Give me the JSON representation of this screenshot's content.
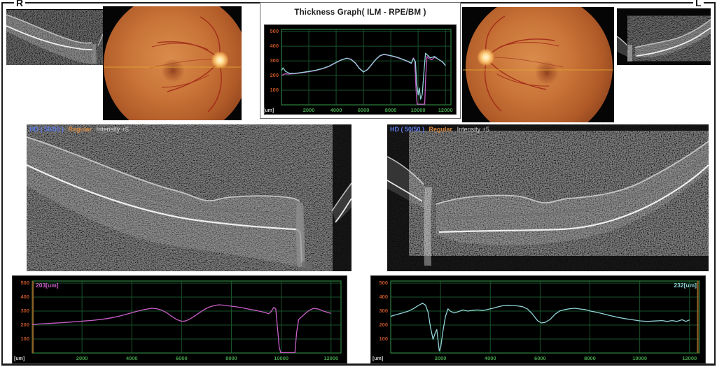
{
  "page": {
    "right_eye_label": "R",
    "left_eye_label": "L"
  },
  "colors": {
    "grid": "#17522b",
    "axis": "#2e7d3c",
    "y_tick": "#bf5327",
    "x_tick": "#45a04b",
    "unit": "#d0d0d0",
    "marker": "#8a5e22",
    "magenta": "#c95fc9",
    "cyan": "#8fd2d6",
    "hd_blue": "#5b79e8",
    "regular_orange": "#d98a3d",
    "intensity_white": "#d8d8d8"
  },
  "bscans": {
    "right_eye": {
      "hd": "HD ( 50/50 )",
      "mode": "Regular",
      "intensity": "Intensity +5"
    },
    "left_eye": {
      "hd": "HD ( 50/50 )",
      "mode": "Regular",
      "intensity": "Intensity +5"
    }
  },
  "chart_data": [
    {
      "id": "thickness-overlay",
      "type": "line",
      "title": "Thickness Graph( ILM - RPE/BM )",
      "x_unit": "[um]",
      "xlabel": "[um]",
      "ylabel": "",
      "x_ticks": [
        2000,
        4000,
        6000,
        8000,
        10000,
        12000
      ],
      "y_ticks": [
        100,
        200,
        300,
        400,
        500
      ],
      "xlim": [
        0,
        12400
      ],
      "ylim": [
        0,
        515
      ],
      "grid": true,
      "marker_x": null,
      "series": [
        {
          "name": "right-eye-thickness",
          "color": "#c95fc9",
          "points": [
            [
              0,
              200
            ],
            [
              250,
              212
            ],
            [
              500,
              210
            ],
            [
              1000,
              213
            ],
            [
              1500,
              219
            ],
            [
              2000,
              226
            ],
            [
              2500,
              234
            ],
            [
              3000,
              246
            ],
            [
              3500,
              263
            ],
            [
              4000,
              288
            ],
            [
              4400,
              306
            ],
            [
              4800,
              319
            ],
            [
              5100,
              311
            ],
            [
              5400,
              287
            ],
            [
              5700,
              250
            ],
            [
              6000,
              226
            ],
            [
              6300,
              240
            ],
            [
              6600,
              274
            ],
            [
              6900,
              308
            ],
            [
              7200,
              333
            ],
            [
              7500,
              344
            ],
            [
              7800,
              338
            ],
            [
              8100,
              332
            ],
            [
              8500,
              322
            ],
            [
              8900,
              308
            ],
            [
              9200,
              297
            ],
            [
              9500,
              283
            ],
            [
              9650,
              320
            ],
            [
              9750,
              305
            ],
            [
              9850,
              100
            ],
            [
              9930,
              4
            ],
            [
              10480,
              4
            ],
            [
              10560,
              200
            ],
            [
              10650,
              330
            ],
            [
              10800,
              315
            ],
            [
              11000,
              308
            ],
            [
              11200,
              325
            ],
            [
              11450,
              312
            ],
            [
              11700,
              298
            ],
            [
              12000,
              272
            ]
          ]
        },
        {
          "name": "left-eye-thickness",
          "color": "#8fd2d6",
          "points": [
            [
              0,
              235
            ],
            [
              120,
              252
            ],
            [
              300,
              228
            ],
            [
              600,
              215
            ],
            [
              1000,
              215
            ],
            [
              1500,
              221
            ],
            [
              2000,
              228
            ],
            [
              2500,
              236
            ],
            [
              3000,
              248
            ],
            [
              3500,
              265
            ],
            [
              4000,
              290
            ],
            [
              4400,
              308
            ],
            [
              4800,
              318
            ],
            [
              5100,
              309
            ],
            [
              5400,
              285
            ],
            [
              5700,
              248
            ],
            [
              6000,
              224
            ],
            [
              6300,
              242
            ],
            [
              6600,
              276
            ],
            [
              6900,
              310
            ],
            [
              7200,
              335
            ],
            [
              7500,
              346
            ],
            [
              7800,
              340
            ],
            [
              8100,
              334
            ],
            [
              8500,
              324
            ],
            [
              8900,
              310
            ],
            [
              9200,
              299
            ],
            [
              9500,
              285
            ],
            [
              9650,
              315
            ],
            [
              9800,
              295
            ],
            [
              9900,
              140
            ],
            [
              10000,
              68
            ],
            [
              10090,
              115
            ],
            [
              10180,
              38
            ],
            [
              10300,
              70
            ],
            [
              10430,
              230
            ],
            [
              10540,
              352
            ],
            [
              10700,
              338
            ],
            [
              10900,
              320
            ],
            [
              11200,
              330
            ],
            [
              11500,
              310
            ],
            [
              11800,
              292
            ],
            [
              12000,
              268
            ]
          ]
        }
      ]
    },
    {
      "id": "right-eye-thickness-graph",
      "type": "line",
      "title": "",
      "value_label": "203[um]",
      "value_label_color": "#c95fc9",
      "value_label_side": "left",
      "x_unit": "[um]",
      "xlabel": "[um]",
      "ylabel": "",
      "x_ticks": [
        2000,
        4000,
        6000,
        8000,
        10000,
        12000
      ],
      "y_ticks": [
        100,
        200,
        300,
        400,
        500
      ],
      "xlim": [
        0,
        12400
      ],
      "ylim": [
        0,
        515
      ],
      "grid": true,
      "marker_x": 25,
      "series": [
        {
          "name": "right-eye-thickness",
          "color": "#c95fc9",
          "points": [
            [
              0,
              203
            ],
            [
              300,
              208
            ],
            [
              600,
              211
            ],
            [
              900,
              214
            ],
            [
              1200,
              217
            ],
            [
              1500,
              221
            ],
            [
              1800,
              225
            ],
            [
              2100,
              229
            ],
            [
              2400,
              233
            ],
            [
              2700,
              239
            ],
            [
              3000,
              246
            ],
            [
              3300,
              256
            ],
            [
              3600,
              268
            ],
            [
              3900,
              283
            ],
            [
              4200,
              298
            ],
            [
              4500,
              311
            ],
            [
              4800,
              320
            ],
            [
              5000,
              317
            ],
            [
              5200,
              307
            ],
            [
              5400,
              288
            ],
            [
              5600,
              262
            ],
            [
              5800,
              240
            ],
            [
              6000,
              227
            ],
            [
              6150,
              229
            ],
            [
              6300,
              240
            ],
            [
              6500,
              262
            ],
            [
              6700,
              286
            ],
            [
              6900,
              310
            ],
            [
              7100,
              328
            ],
            [
              7300,
              339
            ],
            [
              7500,
              345
            ],
            [
              7700,
              342
            ],
            [
              7900,
              337
            ],
            [
              8100,
              333
            ],
            [
              8400,
              325
            ],
            [
              8700,
              314
            ],
            [
              9000,
              304
            ],
            [
              9200,
              296
            ],
            [
              9400,
              287
            ],
            [
              9500,
              281
            ],
            [
              9600,
              298
            ],
            [
              9700,
              326
            ],
            [
              9780,
              316
            ],
            [
              9850,
              180
            ],
            [
              9920,
              40
            ],
            [
              9980,
              3
            ],
            [
              10550,
              3
            ],
            [
              10620,
              150
            ],
            [
              10700,
              240
            ],
            [
              10900,
              272
            ],
            [
              11100,
              303
            ],
            [
              11300,
              320
            ],
            [
              11500,
              314
            ],
            [
              11700,
              300
            ],
            [
              11900,
              288
            ],
            [
              12000,
              284
            ]
          ]
        }
      ]
    },
    {
      "id": "left-eye-thickness-graph",
      "type": "line",
      "title": "",
      "value_label": "232[um]",
      "value_label_color": "#8fd2d6",
      "value_label_side": "right",
      "x_unit": "[um]",
      "xlabel": "[um]",
      "ylabel": "",
      "x_ticks": [
        2000,
        4000,
        6000,
        8000,
        10000,
        12000
      ],
      "y_ticks": [
        100,
        200,
        300,
        400,
        500
      ],
      "xlim": [
        0,
        12400
      ],
      "ylim": [
        0,
        515
      ],
      "grid": true,
      "marker_x": 12330,
      "series": [
        {
          "name": "left-eye-thickness",
          "color": "#8fd2d6",
          "points": [
            [
              0,
              262
            ],
            [
              100,
              268
            ],
            [
              300,
              278
            ],
            [
              500,
              288
            ],
            [
              700,
              299
            ],
            [
              900,
              316
            ],
            [
              1100,
              339
            ],
            [
              1280,
              356
            ],
            [
              1400,
              342
            ],
            [
              1500,
              292
            ],
            [
              1600,
              182
            ],
            [
              1700,
              98
            ],
            [
              1780,
              140
            ],
            [
              1850,
              168
            ],
            [
              1900,
              92
            ],
            [
              1950,
              15
            ],
            [
              2010,
              45
            ],
            [
              2100,
              160
            ],
            [
              2200,
              262
            ],
            [
              2300,
              316
            ],
            [
              2400,
              299
            ],
            [
              2550,
              286
            ],
            [
              2700,
              295
            ],
            [
              2900,
              308
            ],
            [
              3100,
              300
            ],
            [
              3300,
              306
            ],
            [
              3500,
              308
            ],
            [
              3700,
              304
            ],
            [
              3900,
              312
            ],
            [
              4100,
              320
            ],
            [
              4300,
              330
            ],
            [
              4500,
              338
            ],
            [
              4700,
              341
            ],
            [
              4900,
              340
            ],
            [
              5100,
              337
            ],
            [
              5300,
              331
            ],
            [
              5500,
              314
            ],
            [
              5700,
              277
            ],
            [
              5900,
              231
            ],
            [
              6050,
              215
            ],
            [
              6200,
              219
            ],
            [
              6400,
              240
            ],
            [
              6600,
              278
            ],
            [
              6800,
              302
            ],
            [
              7000,
              311
            ],
            [
              7200,
              317
            ],
            [
              7400,
              320
            ],
            [
              7600,
              315
            ],
            [
              7800,
              311
            ],
            [
              8000,
              301
            ],
            [
              8200,
              294
            ],
            [
              8500,
              282
            ],
            [
              8800,
              268
            ],
            [
              9100,
              256
            ],
            [
              9400,
              246
            ],
            [
              9700,
              238
            ],
            [
              10000,
              230
            ],
            [
              10300,
              226
            ],
            [
              10600,
              229
            ],
            [
              10900,
              232
            ],
            [
              11100,
              226
            ],
            [
              11300,
              232
            ],
            [
              11500,
              226
            ],
            [
              11700,
              238
            ],
            [
              11850,
              226
            ],
            [
              12000,
              237
            ]
          ]
        }
      ]
    }
  ]
}
